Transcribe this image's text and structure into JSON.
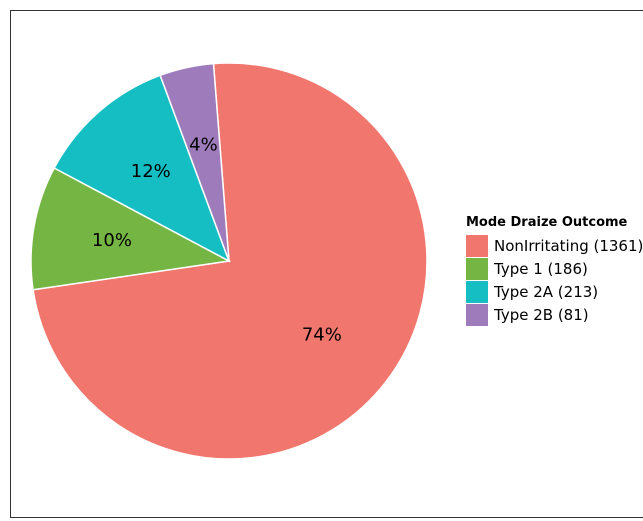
{
  "chart_data": {
    "type": "pie",
    "legend_title": "Mode Draize Outcome",
    "legend_position": "right",
    "slices": [
      {
        "name": "NonIrritating (1361)",
        "value": 1361,
        "label": "74%",
        "color": "#F1766D"
      },
      {
        "name": "Type 1 (186)",
        "value": 186,
        "label": "10%",
        "color": "#74B544"
      },
      {
        "name": "Type 2A (213)",
        "value": 213,
        "label": "12%",
        "color": "#14BEC2"
      },
      {
        "name": "Type 2B (81)",
        "value": 81,
        "label": "4%",
        "color": "#9E7CBB"
      }
    ]
  }
}
